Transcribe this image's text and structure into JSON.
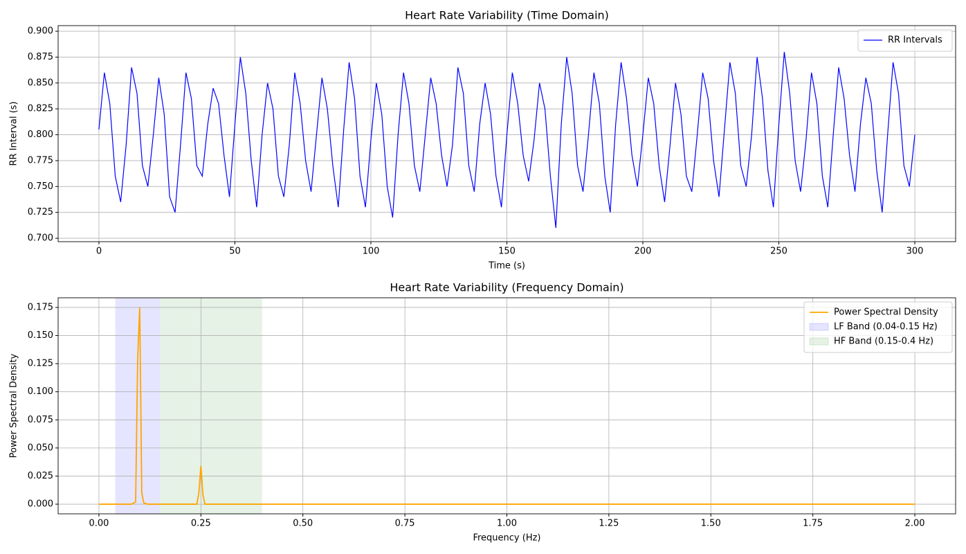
{
  "chart_data": [
    {
      "type": "line",
      "title": "Heart Rate Variability (Time Domain)",
      "xlabel": "Time (s)",
      "ylabel": "RR Interval (s)",
      "x": [
        0,
        2,
        4,
        6,
        8,
        10,
        12,
        14,
        16,
        18,
        20,
        22,
        24,
        26,
        28,
        30,
        32,
        34,
        36,
        38,
        40,
        42,
        44,
        46,
        48,
        50,
        52,
        54,
        56,
        58,
        60,
        62,
        64,
        66,
        68,
        70,
        72,
        74,
        76,
        78,
        80,
        82,
        84,
        86,
        88,
        90,
        92,
        94,
        96,
        98,
        100,
        102,
        104,
        106,
        108,
        110,
        112,
        114,
        116,
        118,
        120,
        122,
        124,
        126,
        128,
        130,
        132,
        134,
        136,
        138,
        140,
        142,
        144,
        146,
        148,
        150,
        152,
        154,
        156,
        158,
        160,
        162,
        164,
        166,
        168,
        170,
        172,
        174,
        176,
        178,
        180,
        182,
        184,
        186,
        188,
        190,
        192,
        194,
        196,
        198,
        200,
        202,
        204,
        206,
        208,
        210,
        212,
        214,
        216,
        218,
        220,
        222,
        224,
        226,
        228,
        230,
        232,
        234,
        236,
        238,
        240,
        242,
        244,
        246,
        248,
        250,
        252,
        254,
        256,
        258,
        260,
        262,
        264,
        266,
        268,
        270,
        272,
        274,
        276,
        278,
        280,
        282,
        284,
        286,
        288,
        290,
        292,
        294,
        296,
        298,
        300
      ],
      "series": [
        {
          "name": "RR Intervals",
          "color": "#0000ff",
          "values": [
            0.805,
            0.86,
            0.83,
            0.76,
            0.735,
            0.79,
            0.865,
            0.84,
            0.77,
            0.75,
            0.8,
            0.855,
            0.82,
            0.74,
            0.725,
            0.79,
            0.86,
            0.835,
            0.77,
            0.76,
            0.81,
            0.845,
            0.83,
            0.78,
            0.74,
            0.81,
            0.875,
            0.84,
            0.775,
            0.73,
            0.8,
            0.85,
            0.825,
            0.76,
            0.74,
            0.79,
            0.86,
            0.83,
            0.775,
            0.745,
            0.8,
            0.855,
            0.825,
            0.77,
            0.73,
            0.805,
            0.87,
            0.835,
            0.76,
            0.73,
            0.795,
            0.85,
            0.82,
            0.75,
            0.72,
            0.8,
            0.86,
            0.83,
            0.77,
            0.745,
            0.8,
            0.855,
            0.83,
            0.78,
            0.75,
            0.79,
            0.865,
            0.84,
            0.77,
            0.745,
            0.81,
            0.85,
            0.82,
            0.76,
            0.73,
            0.8,
            0.86,
            0.83,
            0.78,
            0.755,
            0.795,
            0.85,
            0.825,
            0.76,
            0.71,
            0.81,
            0.875,
            0.84,
            0.77,
            0.745,
            0.8,
            0.86,
            0.83,
            0.76,
            0.725,
            0.81,
            0.87,
            0.835,
            0.78,
            0.75,
            0.8,
            0.855,
            0.83,
            0.77,
            0.735,
            0.79,
            0.85,
            0.82,
            0.76,
            0.745,
            0.8,
            0.86,
            0.835,
            0.775,
            0.74,
            0.805,
            0.87,
            0.84,
            0.77,
            0.75,
            0.8,
            0.875,
            0.835,
            0.765,
            0.73,
            0.81,
            0.88,
            0.84,
            0.775,
            0.745,
            0.795,
            0.86,
            0.83,
            0.76,
            0.73,
            0.8,
            0.865,
            0.835,
            0.78,
            0.745,
            0.81,
            0.855,
            0.83,
            0.765,
            0.725,
            0.8,
            0.87,
            0.84,
            0.77,
            0.75,
            0.8
          ]
        }
      ],
      "xlim": [
        -15,
        315
      ],
      "ylim": [
        0.6967,
        0.9054
      ],
      "xticks": [
        0,
        50,
        100,
        150,
        200,
        250,
        300
      ],
      "yticks": [
        {
          "value": 0.7,
          "label": "0.700"
        },
        0.725,
        {
          "value": 0.75,
          "label": "0.750"
        },
        0.775,
        {
          "value": 0.8,
          "label": "0.800"
        },
        0.825,
        {
          "value": 0.85,
          "label": "0.850"
        },
        0.875,
        {
          "value": 0.9,
          "label": "0.900"
        }
      ],
      "grid": true,
      "legend": "upper right"
    },
    {
      "type": "line",
      "title": "Heart Rate Variability (Frequency Domain)",
      "xlabel": "Frequency (Hz)",
      "ylabel": "Power Spectral Density",
      "x": [
        0,
        0.08,
        0.09,
        0.095,
        0.1,
        0.105,
        0.11,
        0.12,
        0.24,
        0.245,
        0.25,
        0.255,
        0.26,
        0.3,
        0.5,
        1.0,
        1.5,
        2.0
      ],
      "series": [
        {
          "name": "Power Spectral Density",
          "color": "#ffa500",
          "values": [
            0,
            0,
            0.002,
            0.13,
            0.175,
            0.01,
            0.001,
            0,
            0,
            0.01,
            0.034,
            0.008,
            0,
            0,
            0,
            0,
            0,
            0
          ]
        }
      ],
      "spans": [
        {
          "name": "LF Band (0.04-0.15 Hz)",
          "color": "#0000ff",
          "range": [
            0.04,
            0.15
          ]
        },
        {
          "name": "HF Band (0.15-0.4 Hz)",
          "color": "#008000",
          "range": [
            0.15,
            0.4
          ]
        }
      ],
      "xlim": [
        -0.1,
        2.1
      ],
      "ylim": [
        -0.0086,
        0.1836
      ],
      "xticks": [
        {
          "value": 0,
          "label": "0.00"
        },
        0.25,
        {
          "value": 0.5,
          "label": "0.50"
        },
        0.75,
        {
          "value": 1,
          "label": "1.00"
        },
        1.25,
        {
          "value": 1.5,
          "label": "1.50"
        },
        1.75,
        {
          "value": 2,
          "label": "2.00"
        }
      ],
      "yticks": [
        {
          "value": 0,
          "label": "0.000"
        },
        0.025,
        {
          "value": 0.05,
          "label": "0.050"
        },
        0.075,
        {
          "value": 0.1,
          "label": "0.100"
        },
        0.125,
        {
          "value": 0.15,
          "label": "0.150"
        },
        0.175
      ],
      "grid": true,
      "legend": "upper right"
    }
  ]
}
